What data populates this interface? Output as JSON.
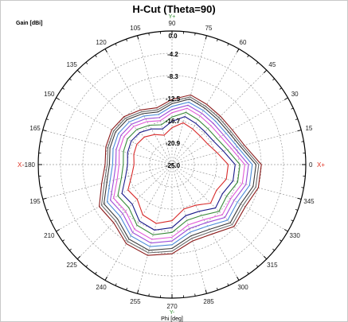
{
  "chart_data": {
    "type": "line",
    "subtype": "polar",
    "title": "H-Cut (Theta=90)",
    "ylabel": "Gain [dBi]",
    "xlabel": "Phi [deg]",
    "radial_ticks": [
      "0.0",
      "-4.2",
      "-8.3",
      "-12.5",
      "-16.7",
      "-20.9",
      "-25.0"
    ],
    "radial_range": [
      -25.0,
      0.0
    ],
    "angle_ticks": [
      0,
      15,
      30,
      45,
      60,
      75,
      90,
      105,
      120,
      135,
      150,
      165,
      180,
      195,
      210,
      225,
      240,
      255,
      270,
      285,
      300,
      315,
      330,
      345
    ],
    "angle_labels": [
      "0",
      "15",
      "30",
      "45",
      "60",
      "75",
      "90",
      "105",
      "120",
      "135",
      "150",
      "165",
      "-180",
      "195",
      "210",
      "225",
      "240",
      "255",
      "270",
      "285",
      "300",
      "315",
      "330",
      "345"
    ],
    "axis_markers": {
      "x_pos": "X+",
      "x_neg": "X-",
      "y_pos": "Y+",
      "y_neg": "Y-"
    },
    "grid": true,
    "phi": [
      0,
      15,
      30,
      45,
      60,
      75,
      90,
      105,
      120,
      135,
      150,
      165,
      180,
      195,
      210,
      225,
      240,
      255,
      270,
      285,
      300,
      315,
      330,
      345
    ],
    "series": [
      {
        "color": "#8b1a1a",
        "values": [
          -8.3,
          -11.0,
          -12.0,
          -12.2,
          -12.0,
          -11.5,
          -12.8,
          -14.0,
          -13.2,
          -12.3,
          -12.0,
          -12.2,
          -12.5,
          -11.4,
          -9.3,
          -9.6,
          -7.9,
          -7.4,
          -8.3,
          -10.2,
          -10.0,
          -8.6,
          -9.2,
          -8.3
        ]
      },
      {
        "color": "#6a6a6a",
        "values": [
          -8.8,
          -11.4,
          -12.4,
          -12.6,
          -12.4,
          -11.9,
          -13.2,
          -14.4,
          -13.6,
          -12.7,
          -12.4,
          -12.6,
          -12.9,
          -11.9,
          -9.8,
          -10.1,
          -8.4,
          -7.9,
          -8.8,
          -10.7,
          -10.5,
          -9.1,
          -9.7,
          -8.8
        ]
      },
      {
        "color": "#3a3a3a",
        "values": [
          -9.3,
          -11.8,
          -12.8,
          -13.0,
          -12.8,
          -12.3,
          -13.6,
          -14.8,
          -14.0,
          -13.1,
          -12.8,
          -13.0,
          -13.3,
          -12.4,
          -10.3,
          -10.6,
          -8.9,
          -8.4,
          -9.3,
          -11.2,
          -11.0,
          -9.6,
          -10.2,
          -9.3
        ]
      },
      {
        "color": "#4b8bd8",
        "values": [
          -10.0,
          -12.3,
          -13.3,
          -13.5,
          -13.3,
          -12.9,
          -14.1,
          -15.3,
          -14.5,
          -13.7,
          -13.4,
          -13.6,
          -13.9,
          -13.0,
          -11.0,
          -11.3,
          -9.6,
          -9.1,
          -10.0,
          -11.9,
          -11.7,
          -10.3,
          -10.9,
          -10.0
        ]
      },
      {
        "color": "#9d4bd8",
        "values": [
          -10.7,
          -12.9,
          -13.9,
          -14.1,
          -13.9,
          -13.5,
          -14.7,
          -15.9,
          -15.1,
          -14.3,
          -14.0,
          -14.2,
          -14.5,
          -13.7,
          -11.7,
          -12.0,
          -10.3,
          -9.8,
          -10.7,
          -12.6,
          -12.4,
          -11.0,
          -11.6,
          -10.7
        ]
      },
      {
        "color": "#e05ad8",
        "values": [
          -11.4,
          -13.5,
          -14.5,
          -14.7,
          -14.5,
          -14.1,
          -15.3,
          -16.5,
          -15.7,
          -14.9,
          -14.6,
          -14.8,
          -15.1,
          -14.4,
          -12.4,
          -12.7,
          -11.0,
          -10.5,
          -11.4,
          -13.3,
          -13.1,
          -11.7,
          -12.3,
          -11.4
        ]
      },
      {
        "color": "#3a8a3a",
        "values": [
          -12.3,
          -14.3,
          -15.3,
          -15.5,
          -15.3,
          -14.9,
          -16.1,
          -17.3,
          -16.5,
          -15.7,
          -15.4,
          -15.6,
          -15.9,
          -15.2,
          -13.3,
          -13.6,
          -11.9,
          -11.4,
          -12.3,
          -14.2,
          -14.0,
          -12.6,
          -13.2,
          -12.3
        ]
      },
      {
        "color": "#1a1a8a",
        "values": [
          -13.2,
          -15.1,
          -16.1,
          -16.3,
          -16.1,
          -15.7,
          -16.9,
          -18.1,
          -17.3,
          -16.5,
          -16.2,
          -16.4,
          -16.7,
          -16.0,
          -14.2,
          -14.5,
          -12.8,
          -12.3,
          -13.2,
          -15.1,
          -14.9,
          -13.5,
          -14.1,
          -13.2
        ]
      },
      {
        "color": "#d82a2a",
        "values": [
          -14.5,
          -16.3,
          -17.3,
          -17.5,
          -17.3,
          -16.9,
          -18.1,
          -19.3,
          -18.5,
          -17.7,
          -17.4,
          -17.6,
          -17.9,
          -17.2,
          -15.5,
          -15.8,
          -14.1,
          -13.6,
          -14.5,
          -16.4,
          -16.2,
          -14.8,
          -15.4,
          -14.5
        ]
      }
    ]
  }
}
